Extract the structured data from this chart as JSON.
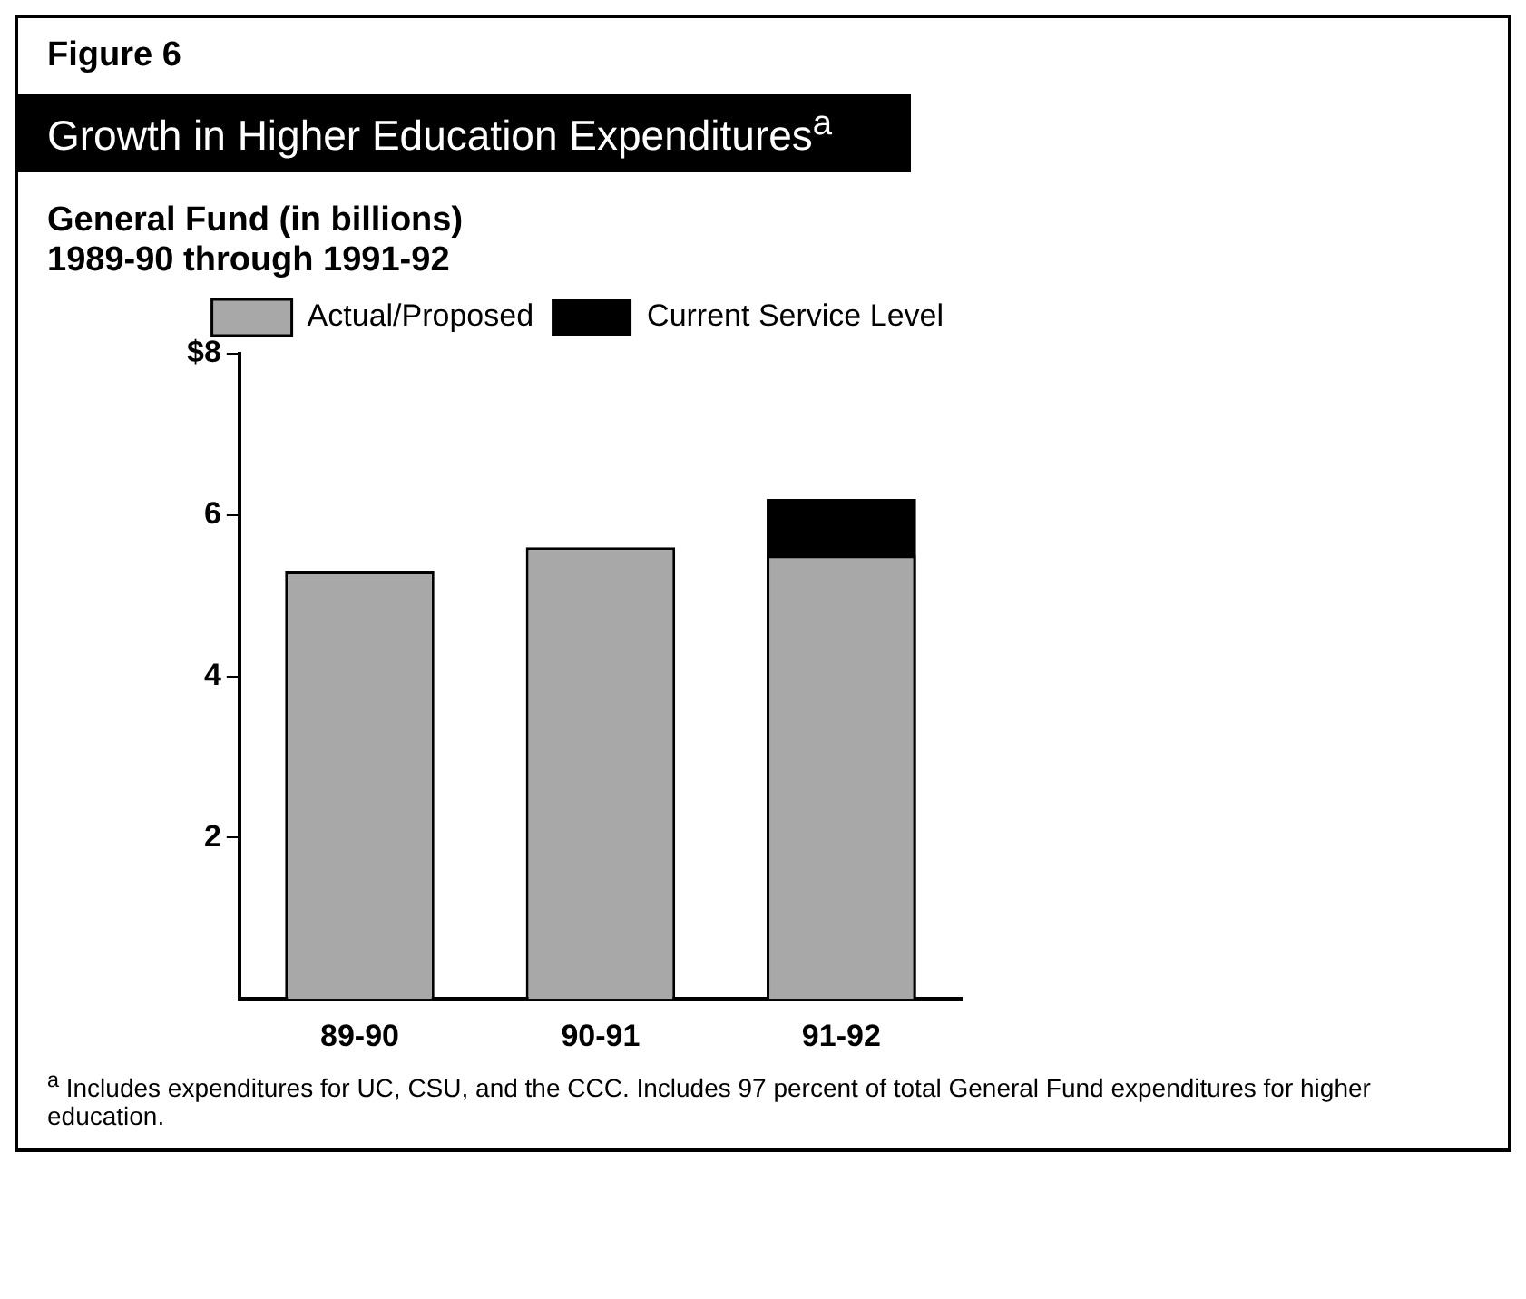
{
  "chart_data": {
    "type": "bar",
    "title": "Growth in Higher Education Expenditures$^{a}$",
    "subtitle": "General Fund (in billions)\n1989-90 through 1991-92",
    "categories": [
      "89-90",
      "90-91",
      "91-92"
    ],
    "series": [
      {
        "name": "Actual/Proposed",
        "color": "#a8a8a8",
        "values": [
          5.3,
          5.6,
          5.5
        ]
      },
      {
        "name": "Current Service Level",
        "color": "#000000",
        "values": [
          null,
          null,
          6.2
        ]
      }
    ],
    "ylim": [
      0,
      8
    ],
    "yticks": [
      {
        "value": 2,
        "label": "2"
      },
      {
        "value": 4,
        "label": "4"
      },
      {
        "value": 6,
        "label": "6"
      },
      {
        "value": 8,
        "label": "$8"
      }
    ],
    "grid": false,
    "legend": "top right",
    "annotations": [
      "Figure 6",
      "$^{a}$ Includes expenditures for UC, CSU, and the CCC. Includes 97 percent of total General Fund expenditures for higher education."
    ]
  }
}
